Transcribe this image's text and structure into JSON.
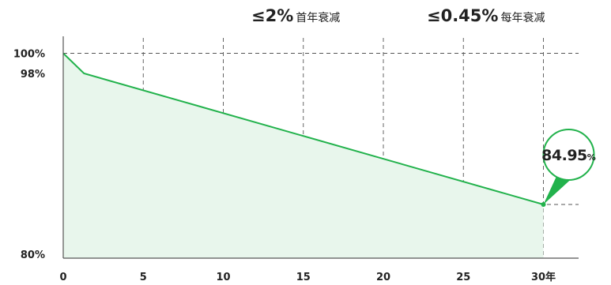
{
  "headline": {
    "first_year": {
      "value": "≤2%",
      "caption": "首年衰减"
    },
    "annual": {
      "value": "≤0.45%",
      "caption": "每年衰减"
    }
  },
  "chart_data": {
    "type": "area",
    "x": [
      0,
      1.3,
      30
    ],
    "y": [
      100,
      98,
      84.95
    ],
    "x_ticks": [
      0,
      5,
      10,
      15,
      20,
      25,
      30
    ],
    "x_tick_labels": [
      "0",
      "5",
      "10",
      "15",
      "20",
      "25",
      "30年"
    ],
    "y_ticks": [
      100,
      98,
      80
    ],
    "y_tick_labels": [
      "100%",
      "98%",
      "80%"
    ],
    "xlim": [
      0,
      32
    ],
    "ylim": [
      80,
      102
    ],
    "h_reference_lines": [
      100,
      84.95
    ],
    "grid": true,
    "end_label": {
      "value": "84.95",
      "unit": "%"
    },
    "colors": {
      "line": "#22b24c",
      "fill": "#e8f6ec",
      "grid": "#555555"
    }
  }
}
